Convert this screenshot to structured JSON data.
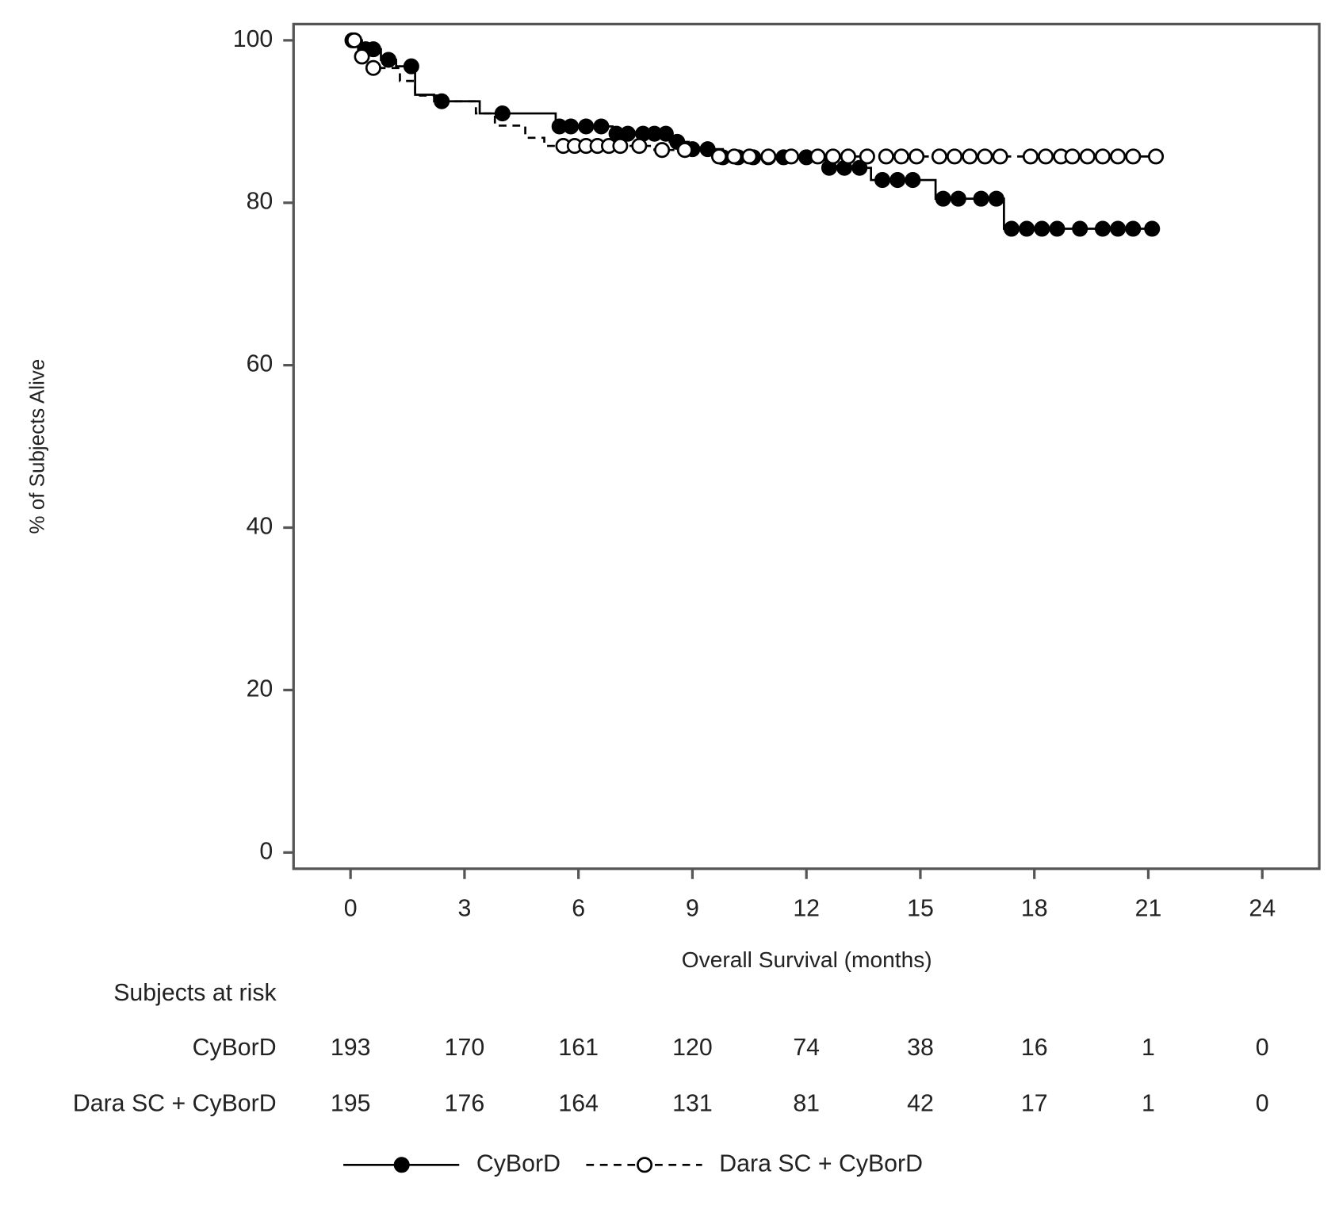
{
  "chart_data": {
    "type": "line",
    "step": true,
    "xlabel": "Overall Survival (months)",
    "ylabel": "% of Subjects Alive",
    "xlim": [
      -1.5,
      25.5
    ],
    "ylim": [
      -2,
      102
    ],
    "xticks": [
      0,
      3,
      6,
      9,
      12,
      15,
      18,
      21,
      24
    ],
    "yticks": [
      0,
      20,
      40,
      60,
      80,
      100
    ],
    "legend": "bottom",
    "series": [
      {
        "name": "CyBorD",
        "color": "#000000",
        "dashed": false,
        "marker": "filled",
        "x": [
          0,
          0.3,
          0.8,
          1.2,
          1.7,
          2.2,
          3.4,
          5.4,
          6.9,
          8.4,
          8.9,
          9.8,
          12.5,
          13.7,
          15.4,
          17.2,
          21.2
        ],
        "values": [
          100,
          98.9,
          97.6,
          96.8,
          93.3,
          92.5,
          91.0,
          89.4,
          88.5,
          87.5,
          86.6,
          85.6,
          84.3,
          82.8,
          80.5,
          76.8,
          76.8
        ],
        "censor_x": [
          0.05,
          0.4,
          0.6,
          1.0,
          1.6,
          2.4,
          4.0,
          5.5,
          5.8,
          6.2,
          6.6,
          7.0,
          7.3,
          7.7,
          8.0,
          8.3,
          8.6,
          9.0,
          9.4,
          9.8,
          10.2,
          10.6,
          11.0,
          11.4,
          12.0,
          12.6,
          13.0,
          13.4,
          14.0,
          14.4,
          14.8,
          15.6,
          16.0,
          16.6,
          17.0,
          17.4,
          17.8,
          18.2,
          18.6,
          19.2,
          19.8,
          20.2,
          20.6,
          21.1
        ],
        "censor_values": [
          100,
          98.9,
          98.9,
          97.6,
          96.8,
          92.5,
          91.0,
          89.4,
          89.4,
          89.4,
          89.4,
          88.5,
          88.5,
          88.5,
          88.5,
          88.5,
          87.5,
          86.6,
          86.6,
          85.6,
          85.6,
          85.6,
          85.6,
          85.6,
          85.6,
          84.3,
          84.3,
          84.3,
          82.8,
          82.8,
          82.8,
          80.5,
          80.5,
          80.5,
          80.5,
          76.8,
          76.8,
          76.8,
          76.8,
          76.8,
          76.8,
          76.8,
          76.8,
          76.8
        ]
      },
      {
        "name": "Dara SC + CyBorD",
        "color": "#000000",
        "dashed": true,
        "marker": "open",
        "x": [
          0,
          0.2,
          0.5,
          1.3,
          1.7,
          2.4,
          3.3,
          3.8,
          4.6,
          5.1,
          8.0,
          9.5,
          21.2
        ],
        "values": [
          100,
          98.0,
          96.6,
          95.0,
          93.2,
          92.5,
          91.0,
          89.5,
          88.0,
          87.0,
          86.5,
          85.7,
          85.7
        ],
        "censor_x": [
          0.1,
          0.3,
          0.6,
          5.6,
          5.9,
          6.2,
          6.5,
          6.8,
          7.1,
          7.6,
          8.2,
          8.8,
          9.7,
          10.1,
          10.5,
          11.0,
          11.6,
          12.3,
          12.7,
          13.1,
          13.6,
          14.1,
          14.5,
          14.9,
          15.5,
          15.9,
          16.3,
          16.7,
          17.1,
          17.9,
          18.3,
          18.7,
          19.0,
          19.4,
          19.8,
          20.2,
          20.6,
          21.2
        ],
        "censor_values": [
          100,
          98.0,
          96.6,
          87.0,
          87.0,
          87.0,
          87.0,
          87.0,
          87.0,
          87.0,
          86.5,
          86.5,
          85.7,
          85.7,
          85.7,
          85.7,
          85.7,
          85.7,
          85.7,
          85.7,
          85.7,
          85.7,
          85.7,
          85.7,
          85.7,
          85.7,
          85.7,
          85.7,
          85.7,
          85.7,
          85.7,
          85.7,
          85.7,
          85.7,
          85.7,
          85.7,
          85.7,
          85.7
        ]
      }
    ],
    "risk_table": {
      "title": "Subjects at risk",
      "rows": [
        {
          "label": "CyBorD",
          "counts": [
            193,
            170,
            161,
            120,
            74,
            38,
            16,
            1,
            0
          ]
        },
        {
          "label": "Dara SC + CyBorD",
          "counts": [
            195,
            176,
            164,
            131,
            81,
            42,
            17,
            1,
            0
          ]
        }
      ]
    }
  }
}
